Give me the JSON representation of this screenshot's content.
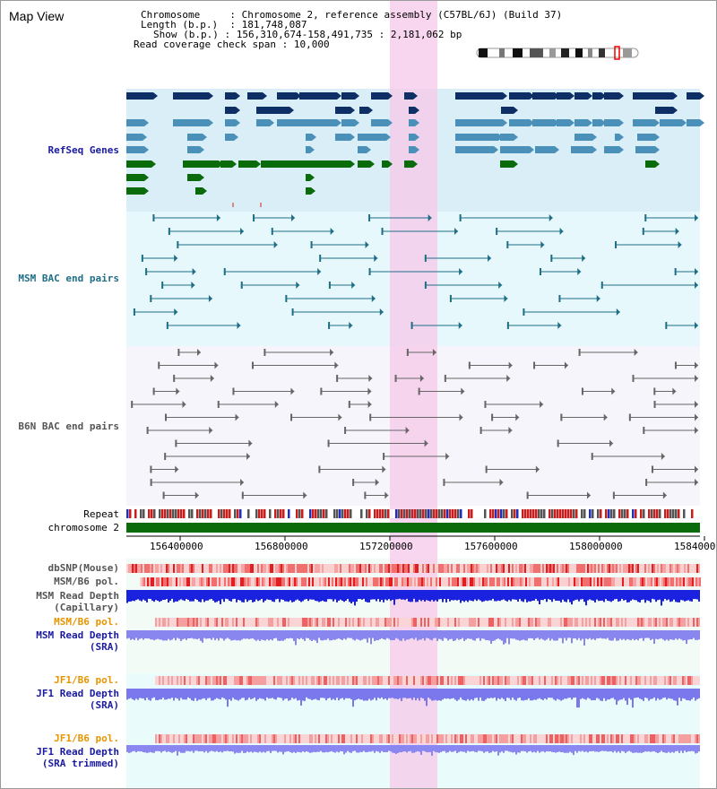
{
  "title": "Map View",
  "header": {
    "chromosome_label": "Chromosome",
    "chromosome_value": "Chromosome 2, reference assembly (C57BL/6J) (Build 37)",
    "length_label": "Length (b.p.)",
    "length_value": "181,748,087",
    "show_label": "Show (b.p.)",
    "show_value": "156,310,674-158,491,735 : 2,181,062 bp",
    "coverage_label": "Read coverage check span",
    "coverage_value": "10,000"
  },
  "tracks": {
    "refseq": "RefSeq Genes",
    "msm_bac": "MSM BAC end pairs",
    "b6n_bac": "B6N BAC end pairs",
    "repeat": "Repeat",
    "chromosome": "chromosome 2",
    "dbsnp": "dbSNP(Mouse)",
    "msm_b6_pol": "MSM/B6 pol.",
    "msm_read_depth_cap_1": "MSM Read Depth",
    "msm_read_depth_cap_2": "(Capillary)",
    "msm_b6_pol_2": "MSM/B6 pol.",
    "msm_read_depth_sra_1": "MSM Read Depth",
    "msm_read_depth_sra_2": "(SRA)",
    "jf1_b6_pol": "JF1/B6 pol.",
    "jf1_read_depth_1": "JF1 Read Depth",
    "jf1_read_depth_2": "(SRA)",
    "jf1_b6_pol_2": "JF1/B6 pol.",
    "jf1_trim_1": "JF1 Read Depth",
    "jf1_trim_2": "(SRA trimmed)"
  },
  "axis_ticks": [
    "156400000",
    "156800000",
    "157200000",
    "157600000",
    "158000000",
    "1584000"
  ],
  "colors": {
    "refseq_dark": "#0d2f66",
    "refseq_mid": "#4a90b8",
    "refseq_green": "#0a6b0a",
    "msm_bac": "#1f6e86",
    "b6n_bac": "#555555",
    "highlight": "#f7c8ea",
    "blue_label": "#1a1aa0",
    "teal_label": "#1f6e86",
    "orange_label": "#e69500",
    "chromosome_bar": "#0b6b0b"
  }
}
